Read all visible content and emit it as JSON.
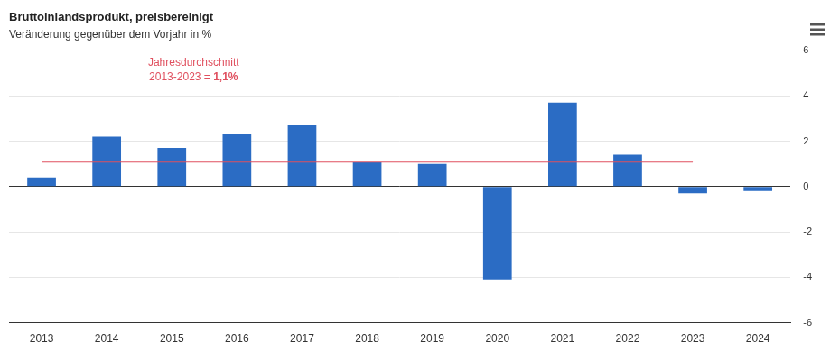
{
  "chart_data": {
    "type": "bar",
    "title": "Bruttoinlandsprodukt, preisbereinigt",
    "subtitle": "Veränderung gegenüber dem Vorjahr in %",
    "categories": [
      "2013",
      "2014",
      "2015",
      "2016",
      "2017",
      "2018",
      "2019",
      "2020",
      "2021",
      "2022",
      "2023",
      "2024"
    ],
    "values": [
      0.4,
      2.2,
      1.7,
      2.3,
      2.7,
      1.1,
      1.0,
      -4.1,
      3.7,
      1.4,
      -0.3,
      -0.2
    ],
    "color": "#2b6cc4",
    "ylim": [
      -6,
      6
    ],
    "yticks": [
      -6,
      -4,
      -2,
      0,
      2,
      4,
      6
    ],
    "grid": true,
    "average": {
      "value": 1.1,
      "label": "1,1%",
      "text": [
        "Jahresdurchschnitt",
        "2013-2023 ="
      ],
      "from": "2013",
      "to": "2023",
      "color": "#e0505f"
    }
  }
}
